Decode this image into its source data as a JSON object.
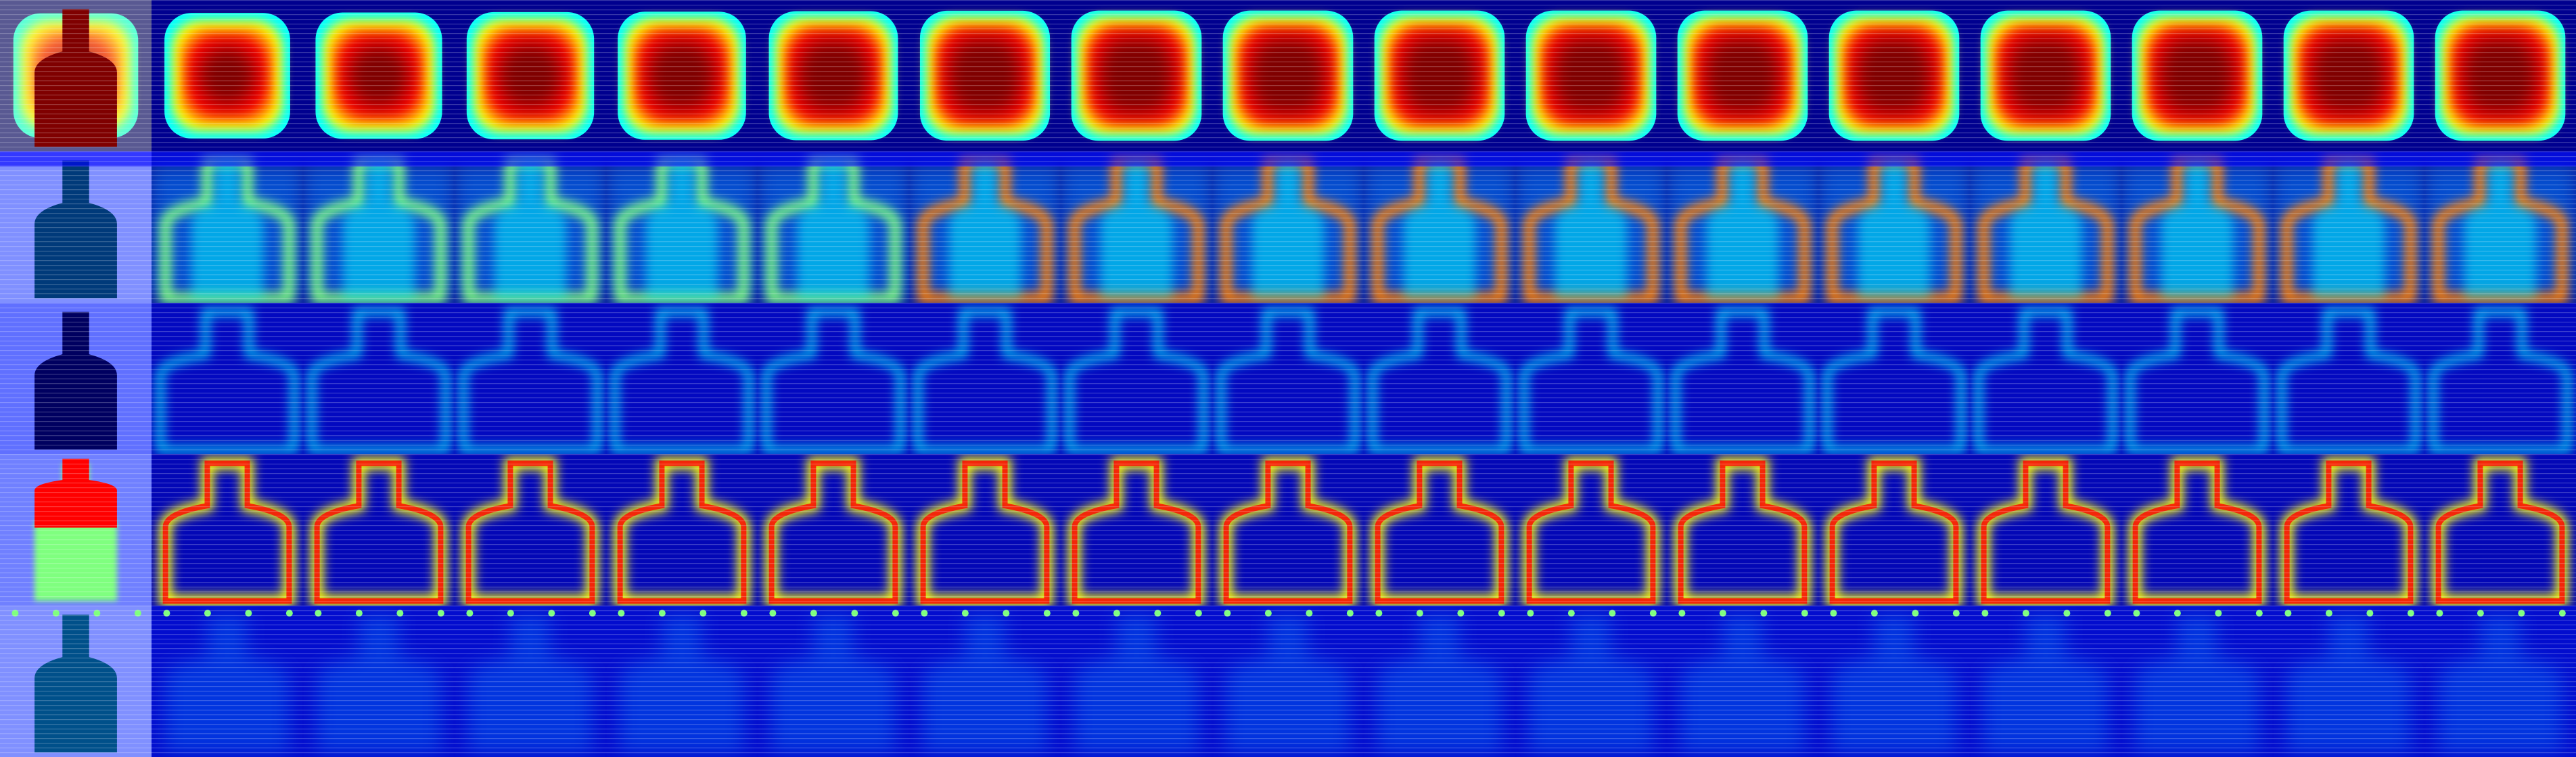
{
  "grid": {
    "rows": [
      {
        "pattern": "rect",
        "cold": "#00008f"
      },
      {
        "pattern": "center",
        "cold": "#0a1c9e"
      },
      {
        "pattern": "outline-soft",
        "cold": "#061096"
      },
      {
        "pattern": "outline",
        "cold": "#050c90"
      },
      {
        "pattern": "faint",
        "cold": "#071a9c"
      }
    ],
    "columns": 17
  },
  "colormap": {
    "name": "jet",
    "stops": [
      "#00007f",
      "#0000ff",
      "#007fff",
      "#00ffff",
      "#7fff7f",
      "#ffff00",
      "#ff7f00",
      "#ff0000",
      "#7f0000"
    ]
  }
}
